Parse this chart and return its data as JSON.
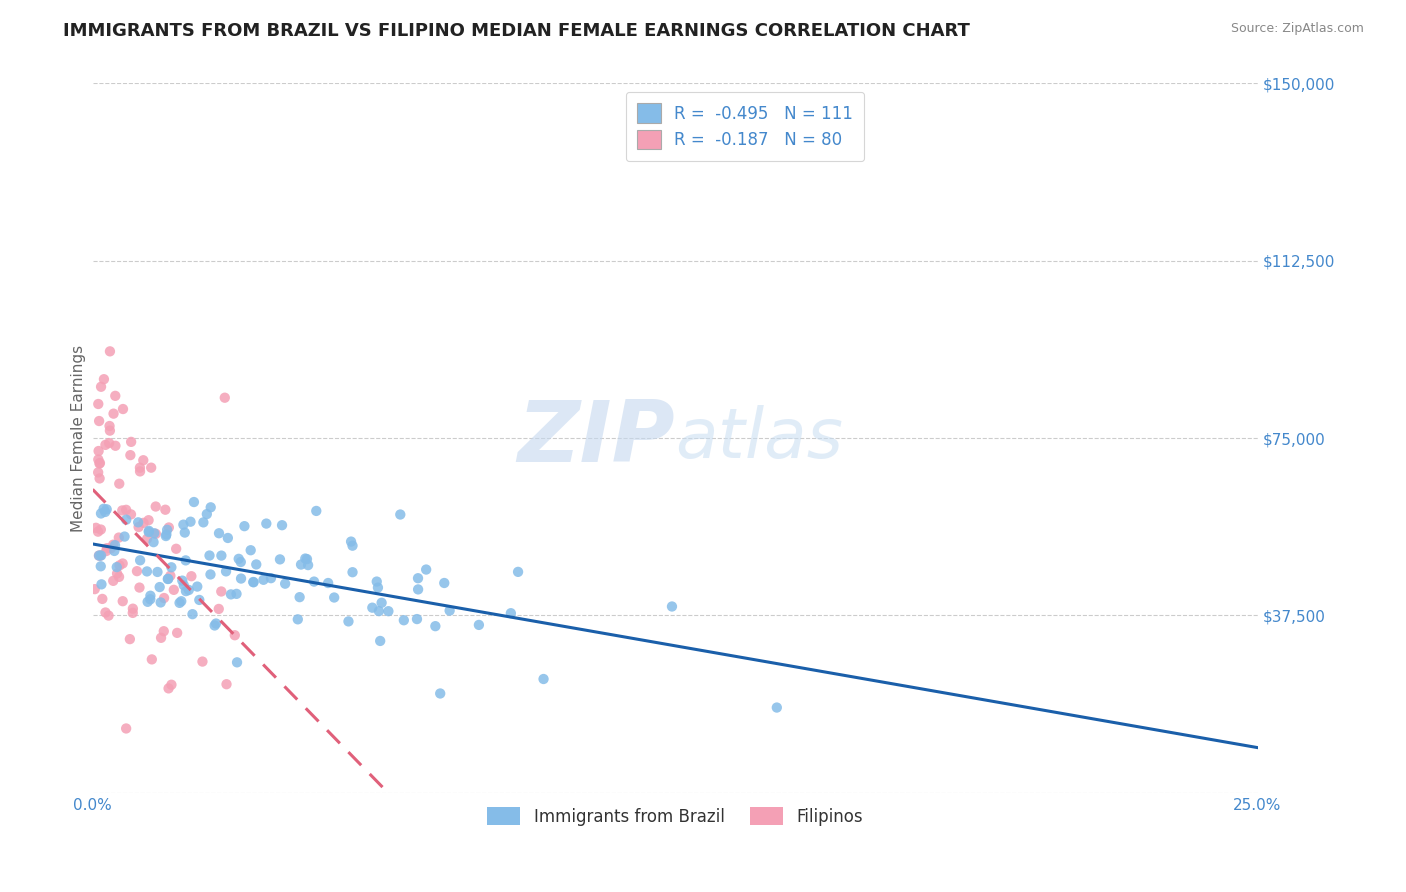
{
  "title": "IMMIGRANTS FROM BRAZIL VS FILIPINO MEDIAN FEMALE EARNINGS CORRELATION CHART",
  "source_text": "Source: ZipAtlas.com",
  "ylabel": "Median Female Earnings",
  "xlim": [
    0.0,
    0.25
  ],
  "ylim": [
    0,
    150000
  ],
  "yticks": [
    0,
    37500,
    75000,
    112500,
    150000
  ],
  "ytick_labels": [
    "",
    "$37,500",
    "$75,000",
    "$112,500",
    "$150,000"
  ],
  "xticks": [
    0.0,
    0.05,
    0.1,
    0.15,
    0.2,
    0.25
  ],
  "xtick_labels": [
    "0.0%",
    "",
    "",
    "",
    "",
    "25.0%"
  ],
  "series1_label": "Immigrants from Brazil",
  "series1_R": -0.495,
  "series1_N": 111,
  "series1_color": "#85bce8",
  "series1_line_color": "#1a5faa",
  "series2_label": "Filipinos",
  "series2_R": -0.187,
  "series2_N": 80,
  "series2_color": "#f4a0b5",
  "series2_line_color": "#e0607a",
  "watermark_zip": "ZIP",
  "watermark_atlas": "atlas",
  "title_fontsize": 13,
  "axis_label_fontsize": 11,
  "tick_fontsize": 11,
  "legend_fontsize": 12,
  "background_color": "#ffffff",
  "grid_color": "#cccccc",
  "tick_color": "#4488cc",
  "title_color": "#222222",
  "source_color": "#888888"
}
